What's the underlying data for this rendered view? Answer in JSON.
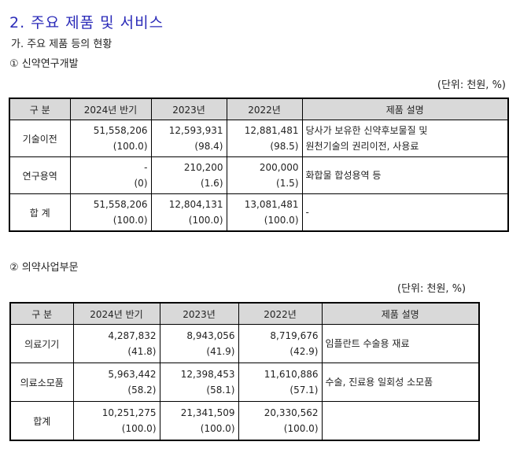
{
  "section_title": "2. 주요 제품 및 서비스",
  "subtitle": "가. 주요 제품 등의 현황",
  "table1": {
    "heading": "① 신약연구개발",
    "unit": "(단위: 천원, %)",
    "headers": [
      "구 분",
      "2024년 반기",
      "2023년",
      "2022년",
      "제품 설명"
    ],
    "rows": [
      {
        "label": "기술이전",
        "v1": "51,558,206",
        "p1": "(100.0)",
        "v2": "12,593,931",
        "p2": "(98.4)",
        "v3": "12,881,481",
        "p3": "(98.5)",
        "d1": "당사가 보유한 신약후보물질 및",
        "d2": "원천기술의 권리이전, 사용료"
      },
      {
        "label": "연구용역",
        "v1": "-",
        "p1": "(0)",
        "v2": "210,200",
        "p2": "(1.6)",
        "v3": "200,000",
        "p3": "(1.5)",
        "d1": "화합물 합성용역 등",
        "d2": ""
      },
      {
        "label": "합 계",
        "v1": "51,558,206",
        "p1": "(100.0)",
        "v2": "12,804,131",
        "p2": "(100.0)",
        "v3": "13,081,481",
        "p3": "(100.0)",
        "d1": "-",
        "d2": ""
      }
    ]
  },
  "table2": {
    "heading": "② 의약사업부문",
    "unit": "(단위: 천원, %)",
    "headers": [
      "구 분",
      "2024년 반기",
      "2023년",
      "2022년",
      "제품 설명"
    ],
    "rows": [
      {
        "label": "의료기기",
        "v1": "4,287,832",
        "p1": "(41.8)",
        "v2": "8,943,056",
        "p2": "(41.9)",
        "v3": "8,719,676",
        "p3": "(42.9)",
        "d1": "임플란트 수술용 재료",
        "d2": ""
      },
      {
        "label": "의료소모품",
        "v1": "5,963,442",
        "p1": "(58.2)",
        "v2": "12,398,453",
        "p2": "(58.1)",
        "v3": "11,610,886",
        "p3": "(57.1)",
        "d1": "수술, 진료용 일회성 소모품",
        "d2": ""
      },
      {
        "label": "합계",
        "v1": "10,251,275",
        "p1": "(100.0)",
        "v2": "21,341,509",
        "p2": "(100.0)",
        "v3": "20,330,562",
        "p3": "(100.0)",
        "d1": "",
        "d2": ""
      }
    ]
  }
}
